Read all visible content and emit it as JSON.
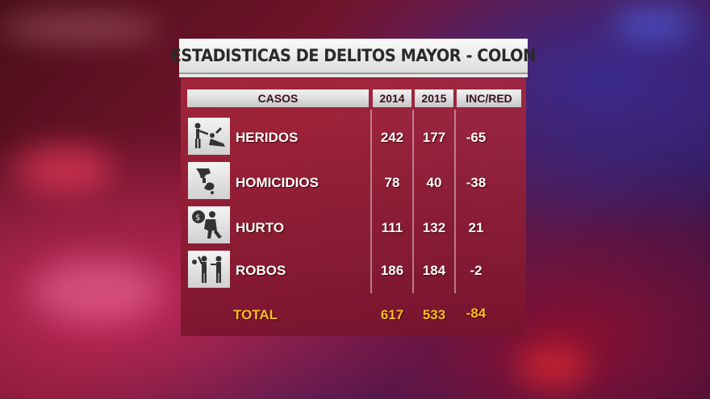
{
  "chart_data": {
    "type": "table",
    "title": "ESTADISTICAS DE DELITOS MAYOR - COLON",
    "columns": [
      "CASOS",
      "2014",
      "2015",
      "INC/RED"
    ],
    "rows": [
      {
        "caso": "HERIDOS",
        "icon": "assault-icon",
        "y2014": "242",
        "y2015": "177",
        "inc": "-65"
      },
      {
        "caso": "HOMICIDIOS",
        "icon": "homicide-icon",
        "y2014": "78",
        "y2015": "40",
        "inc": "-38"
      },
      {
        "caso": "HURTO",
        "icon": "thief-icon",
        "y2014": "111",
        "y2015": "132",
        "inc": "21"
      },
      {
        "caso": "ROBOS",
        "icon": "robbery-icon",
        "y2014": "186",
        "y2015": "184",
        "inc": "-2"
      }
    ],
    "total": {
      "label": "TOTAL",
      "y2014": "617",
      "y2015": "533",
      "inc": "-84"
    }
  },
  "colors": {
    "accent_total": "#f5c020",
    "panel": "#9a2035"
  }
}
